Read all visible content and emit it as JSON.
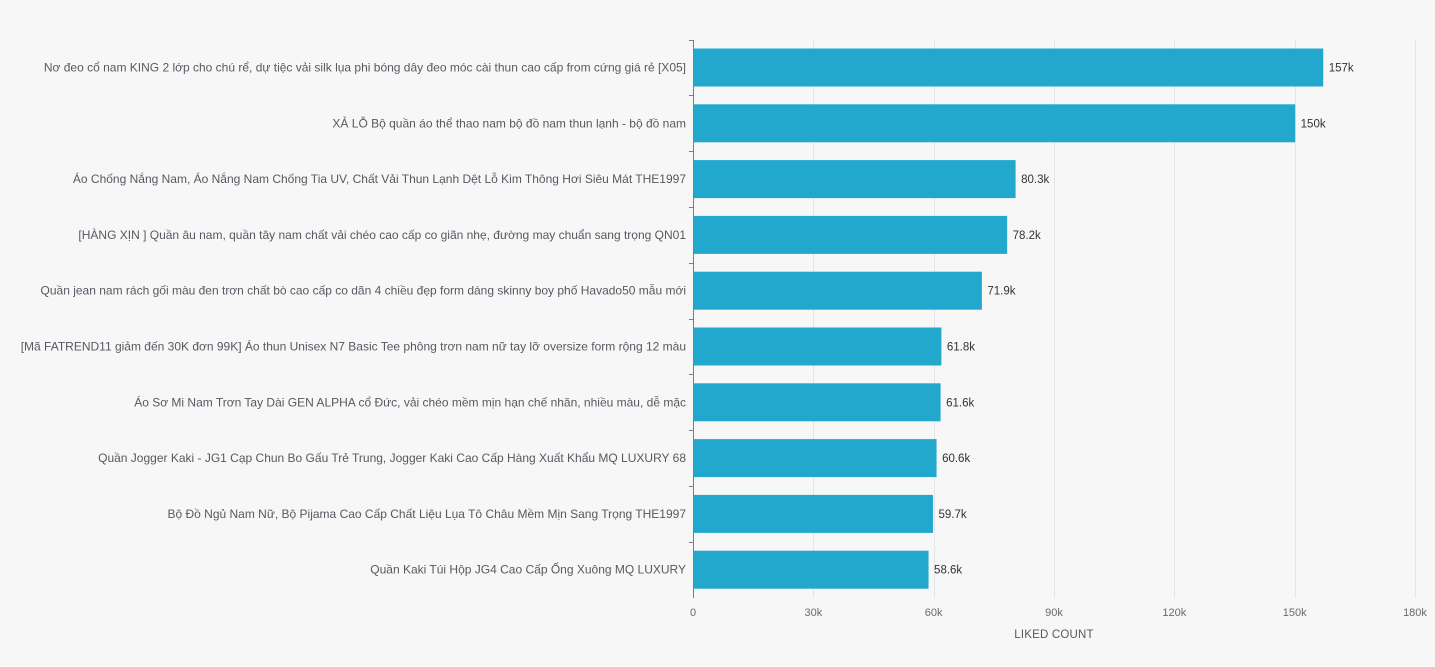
{
  "chart_data": {
    "type": "bar",
    "orientation": "horizontal",
    "categories": [
      "Nơ đeo cổ nam KING 2 lớp cho chú rể, dự tiệc vải silk lụa phi bóng dây đeo móc cài thun cao cấp from cứng giá rẻ [X05]",
      "XẢ LỖ Bộ quần áo thể thao nam bộ đồ nam thun lạnh - bộ đồ nam",
      "Áo Chống Nắng Nam, Áo Nắng Nam Chống Tia UV, Chất Vải Thun Lạnh Dệt Lỗ Kim Thông Hơi Siêu Mát THE1997",
      "[HÀNG XỊN ] Quần âu nam, quần tây nam chất vải chéo cao cấp co giãn nhẹ, đường may chuẩn sang trọng QN01",
      "Quần jean nam rách gối màu đen trơn chất bò cao cấp co dãn 4 chiều đẹp form dáng skinny boy phố Havado50 mẫu mới",
      "[Mã FATREND11 giảm đến 30K đơn 99K] Áo thun Unisex N7 Basic Tee phông trơn nam nữ tay lỡ oversize form rộng 12 màu",
      "Áo Sơ Mi Nam Trơn Tay Dài GEN ALPHA cổ Đức, vải chéo mềm mịn hạn chế nhăn, nhiều màu, dễ mặc",
      "Quần Jogger Kaki - JG1 Cạp Chun Bo Gấu Trẻ Trung, Jogger Kaki Cao Cấp Hàng Xuất Khẩu MQ LUXURY 68",
      "Bộ Đồ Ngủ Nam Nữ, Bộ Pijama Cao Cấp Chất Liệu Lụa Tô Châu Mềm Mịn Sang Trọng THE1997",
      "Quần Kaki Túi Hộp JG4 Cao Cấp Ống Xuông MQ LUXURY"
    ],
    "values": [
      157000,
      150000,
      80300,
      78200,
      71900,
      61800,
      61600,
      60600,
      59700,
      58600
    ],
    "data_labels": [
      "157k",
      "150k",
      "80.3k",
      "78.2k",
      "71.9k",
      "61.8k",
      "61.6k",
      "60.6k",
      "59.7k",
      "58.6k"
    ],
    "xlabel": "LIKED COUNT",
    "ylabel": "",
    "xlim": [
      0,
      180000
    ],
    "xticks": [
      0,
      30000,
      60000,
      90000,
      120000,
      150000,
      180000
    ],
    "xtick_labels": [
      "0",
      "30k",
      "60k",
      "90k",
      "120k",
      "150k",
      "180k"
    ],
    "grid": true,
    "colors": {
      "bar": "#21a8cc",
      "background": "#f7f7f8",
      "grid": "#e3e5ea"
    }
  }
}
